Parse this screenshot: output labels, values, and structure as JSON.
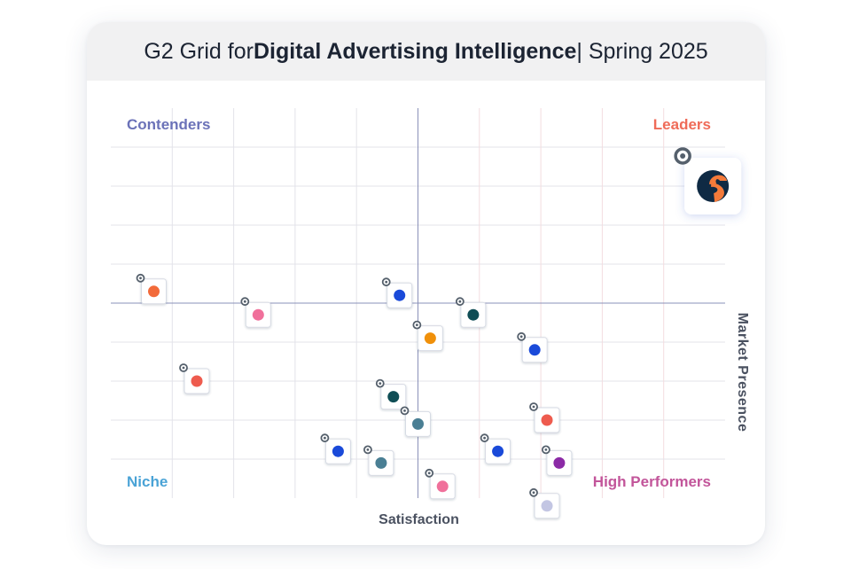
{
  "header": {
    "title_prefix": "G2 Grid for ",
    "title_bold": "Digital Advertising Intelligence",
    "title_suffix": " | Spring 2025"
  },
  "quadrants": {
    "top_left": "Contenders",
    "top_right": "Leaders",
    "bottom_left": "Niche",
    "bottom_right": "High Performers"
  },
  "colors": {
    "contenders": "#6b72b8",
    "leaders": "#ef6b58",
    "niche": "#4aa3d6",
    "high_performers": "#c2559a",
    "grid_line": "#e3e3ea",
    "midline": "#8a90b8",
    "logo_orange": "#f47a3a",
    "logo_navy": "#0f2a44"
  },
  "chart_data": {
    "type": "scatter",
    "title": "G2 Grid for Digital Advertising Intelligence | Spring 2025",
    "xlabel": "Satisfaction",
    "ylabel": "Market Presence",
    "xlim": [
      0,
      10
    ],
    "ylim": [
      0,
      10
    ],
    "grid": true,
    "quadrant_split": {
      "x": 5,
      "y": 5
    },
    "points": [
      {
        "x": 9.8,
        "y": 8.0,
        "color": "#f47a3a",
        "highlight": true,
        "icon": "similarweb-logo"
      },
      {
        "x": 0.7,
        "y": 5.3,
        "color": "#f26a3a"
      },
      {
        "x": 2.4,
        "y": 4.7,
        "color": "#f0709b"
      },
      {
        "x": 1.4,
        "y": 3.0,
        "color": "#ee5b4e"
      },
      {
        "x": 4.7,
        "y": 5.2,
        "color": "#1a4ad9"
      },
      {
        "x": 5.9,
        "y": 4.7,
        "color": "#0f4d55"
      },
      {
        "x": 5.2,
        "y": 4.1,
        "color": "#f0900a"
      },
      {
        "x": 6.9,
        "y": 3.8,
        "color": "#1a4ad9"
      },
      {
        "x": 4.6,
        "y": 2.6,
        "color": "#0f4d55"
      },
      {
        "x": 5.0,
        "y": 1.9,
        "color": "#4a7f94"
      },
      {
        "x": 7.1,
        "y": 2.0,
        "color": "#ee5b4e"
      },
      {
        "x": 3.7,
        "y": 1.2,
        "color": "#1a4ad9"
      },
      {
        "x": 4.4,
        "y": 0.9,
        "color": "#4a7f94"
      },
      {
        "x": 6.3,
        "y": 1.2,
        "color": "#1a4ad9"
      },
      {
        "x": 7.3,
        "y": 0.9,
        "color": "#8b2aa6"
      },
      {
        "x": 5.4,
        "y": 0.3,
        "color": "#f0709b"
      },
      {
        "x": 7.1,
        "y": -0.2,
        "color": "#c3c6e3"
      }
    ]
  }
}
